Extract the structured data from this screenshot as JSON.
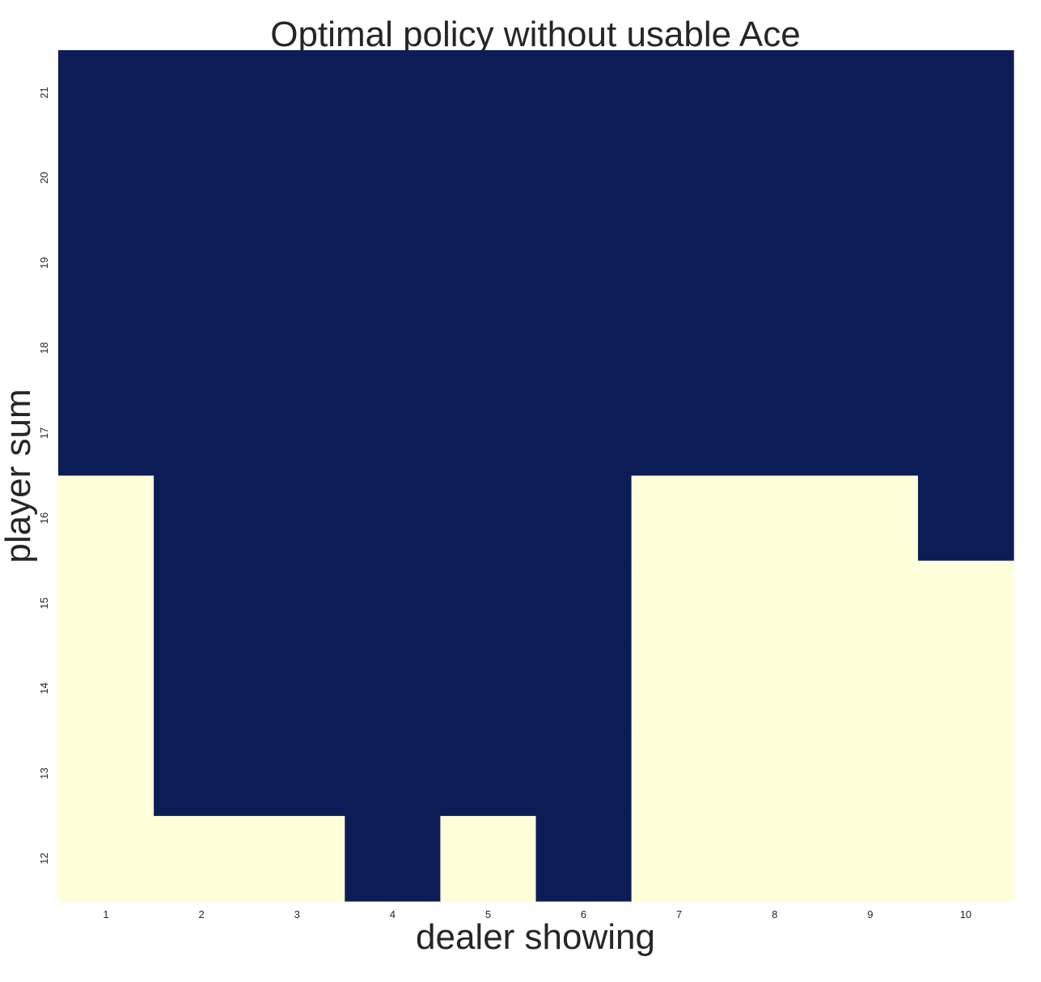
{
  "chart_data": {
    "type": "heatmap",
    "title": "Optimal policy without usable Ace",
    "xlabel": "dealer showing",
    "ylabel": "player sum",
    "x_categories": [
      "1",
      "2",
      "3",
      "4",
      "5",
      "6",
      "7",
      "8",
      "9",
      "10"
    ],
    "y_categories": [
      "21",
      "20",
      "19",
      "18",
      "17",
      "16",
      "15",
      "14",
      "13",
      "12"
    ],
    "values": [
      [
        0,
        0,
        0,
        0,
        0,
        0,
        0,
        0,
        0,
        0
      ],
      [
        0,
        0,
        0,
        0,
        0,
        0,
        0,
        0,
        0,
        0
      ],
      [
        0,
        0,
        0,
        0,
        0,
        0,
        0,
        0,
        0,
        0
      ],
      [
        0,
        0,
        0,
        0,
        0,
        0,
        0,
        0,
        0,
        0
      ],
      [
        0,
        0,
        0,
        0,
        0,
        0,
        0,
        0,
        0,
        0
      ],
      [
        1,
        0,
        0,
        0,
        0,
        0,
        1,
        1,
        1,
        0
      ],
      [
        1,
        0,
        0,
        0,
        0,
        0,
        1,
        1,
        1,
        1
      ],
      [
        1,
        0,
        0,
        0,
        0,
        0,
        1,
        1,
        1,
        1
      ],
      [
        1,
        0,
        0,
        0,
        0,
        0,
        1,
        1,
        1,
        1
      ],
      [
        1,
        1,
        1,
        0,
        1,
        0,
        1,
        1,
        1,
        1
      ]
    ],
    "colormap": {
      "0": "#0c1c56",
      "1": "#ffffd9"
    },
    "colorbar": false,
    "grid": false
  }
}
